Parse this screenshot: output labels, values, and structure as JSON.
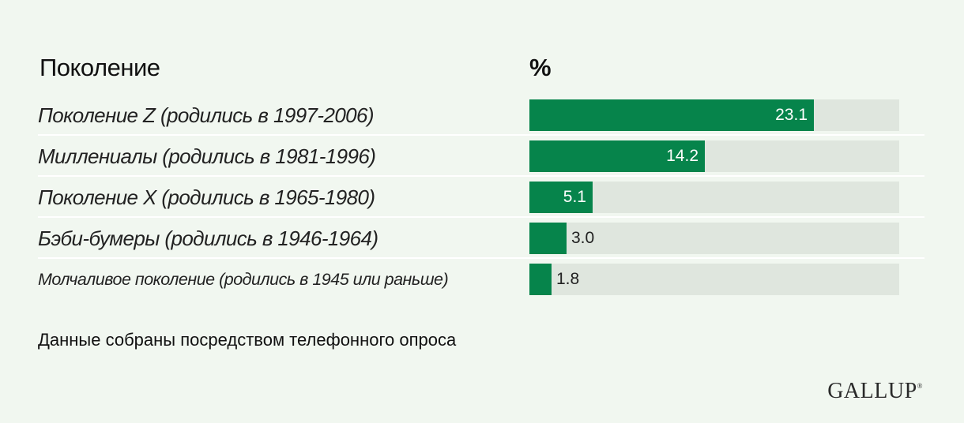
{
  "header": {
    "category_label": "Поколение",
    "value_label": "%"
  },
  "chart_data": {
    "type": "bar",
    "orientation": "horizontal",
    "categories": [
      "Поколение Z (родились в 1997-2006)",
      "Миллениалы (родились в 1981-1996)",
      "Поколение X (родились в 1965-1980)",
      "Бэби-бумеры (родились в 1946-1964)",
      "Молчаливое поколение (родились в 1945 или раньше)"
    ],
    "values": [
      23.1,
      14.2,
      5.1,
      3.0,
      1.8
    ],
    "value_labels": [
      "23.1",
      "14.2",
      "5.1",
      "3.0",
      "1.8"
    ],
    "xlim": [
      0,
      30
    ],
    "bar_color": "#06844b",
    "track_color": "#dfe6de"
  },
  "footer": {
    "note": "Данные собраны посредством телефонного опроса",
    "logo": "GALLUP",
    "logo_mark": "®"
  }
}
